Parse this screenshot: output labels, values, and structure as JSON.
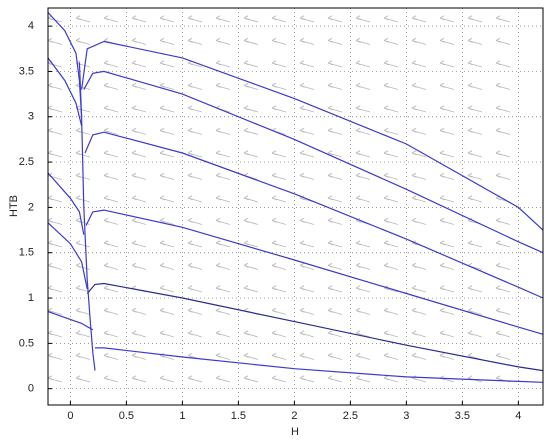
{
  "chart_data": {
    "type": "line",
    "x_label": "H",
    "y_label": "HTB",
    "xlim": [
      -0.2,
      4.22
    ],
    "ylim": [
      -0.18,
      4.2
    ],
    "xticks": [
      0,
      0.5,
      1,
      1.5,
      2,
      2.5,
      3,
      3.5,
      4
    ],
    "yticks": [
      0,
      0.5,
      1,
      1.5,
      2,
      2.5,
      3,
      3.5,
      4
    ],
    "grid": true,
    "series": [
      {
        "color": "#3a3acf",
        "x": [
          0.1,
          0.15,
          0.3,
          1,
          2,
          3,
          4,
          4.22
        ],
        "values": [
          3.3,
          3.75,
          3.83,
          3.65,
          3.2,
          2.7,
          2.0,
          1.75
        ]
      },
      {
        "color": "#3a3acf",
        "x": [
          0.12,
          0.2,
          0.3,
          1,
          2,
          3,
          4,
          4.22
        ],
        "values": [
          3.3,
          3.48,
          3.5,
          3.25,
          2.75,
          2.2,
          1.62,
          1.5
        ]
      },
      {
        "color": "#3a3acf",
        "x": [
          0.13,
          0.2,
          0.3,
          1,
          2,
          3,
          4,
          4.22
        ],
        "values": [
          2.6,
          2.8,
          2.83,
          2.6,
          2.15,
          1.65,
          1.12,
          1.0
        ]
      },
      {
        "color": "#3a3acf",
        "x": [
          0.14,
          0.2,
          0.3,
          1,
          2,
          3,
          4,
          4.22
        ],
        "values": [
          1.8,
          1.95,
          1.97,
          1.78,
          1.42,
          1.05,
          0.68,
          0.6
        ]
      },
      {
        "color": "#2a2a90",
        "x": [
          0.15,
          0.22,
          0.3,
          1,
          2,
          3,
          4,
          4.22
        ],
        "values": [
          1.05,
          1.15,
          1.16,
          1.0,
          0.74,
          0.48,
          0.24,
          0.2
        ]
      },
      {
        "color": "#3a3acf",
        "x": [
          0.22,
          0.3,
          1,
          2,
          3,
          4,
          4.22
        ],
        "values": [
          0.45,
          0.45,
          0.35,
          0.22,
          0.13,
          0.08,
          0.07
        ]
      },
      {
        "color": "#3a3acf",
        "x": [
          -0.2,
          -0.05,
          0.05,
          0.08,
          0.1
        ],
        "values": [
          4.15,
          3.95,
          3.7,
          3.4,
          3.0
        ]
      },
      {
        "color": "#3a3acf",
        "x": [
          -0.2,
          -0.05,
          0.05,
          0.1
        ],
        "values": [
          3.65,
          3.4,
          3.15,
          2.9
        ]
      },
      {
        "color": "#3a3acf",
        "x": [
          -0.2,
          0,
          0.08,
          0.12
        ],
        "values": [
          2.38,
          2.1,
          1.95,
          1.7
        ]
      },
      {
        "color": "#3a3acf",
        "x": [
          -0.2,
          0,
          0.1,
          0.15
        ],
        "values": [
          1.83,
          1.6,
          1.4,
          1.1
        ]
      },
      {
        "color": "#3a3acf",
        "x": [
          -0.2,
          0.1,
          0.2
        ],
        "values": [
          0.85,
          0.72,
          0.65
        ]
      },
      {
        "color": "#3a3acf",
        "x": [
          0.08,
          0.1,
          0.12,
          0.15,
          0.18,
          0.2,
          0.22
        ],
        "values": [
          3.6,
          3.0,
          2.0,
          1.2,
          0.7,
          0.4,
          0.2
        ]
      }
    ]
  }
}
